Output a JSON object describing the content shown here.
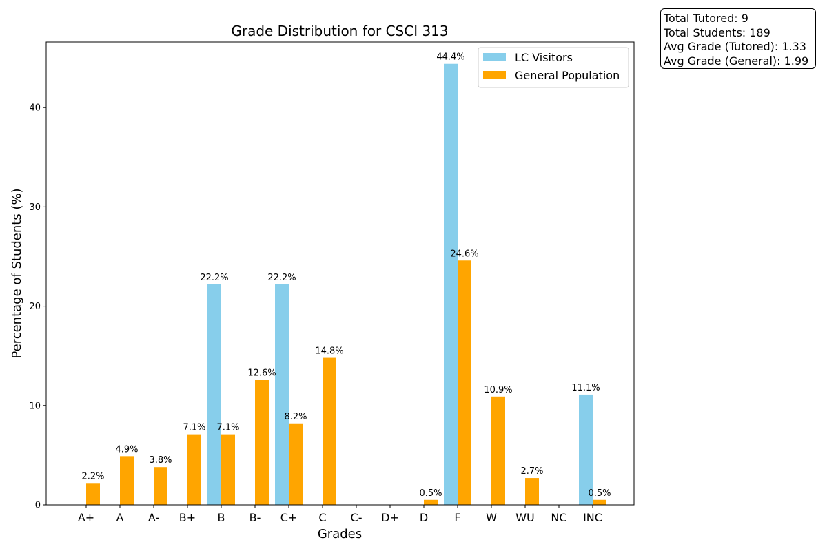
{
  "chart_data": {
    "type": "bar",
    "title": "Grade Distribution for CSCI 313",
    "xlabel": "Grades",
    "ylabel": "Percentage of Students (%)",
    "categories": [
      "A+",
      "A",
      "A-",
      "B+",
      "B",
      "B-",
      "C+",
      "C",
      "C-",
      "D+",
      "D",
      "F",
      "W",
      "WU",
      "NC",
      "INC"
    ],
    "ylim": [
      0,
      46.6
    ],
    "yticks": [
      0,
      10,
      20,
      30,
      40
    ],
    "grid": false,
    "legend_position": "top-right",
    "series": [
      {
        "name": "LC Visitors",
        "color": "#87ceeb",
        "values": [
          0,
          0,
          0,
          0,
          22.2,
          0,
          22.2,
          0,
          0,
          0,
          0,
          44.4,
          0,
          0,
          0,
          11.1
        ],
        "labels": [
          "",
          "",
          "",
          "",
          "22.2%",
          "",
          "22.2%",
          "",
          "",
          "",
          "",
          "44.4%",
          "",
          "",
          "",
          "11.1%"
        ]
      },
      {
        "name": "General Population",
        "color": "#ffa500",
        "values": [
          2.2,
          4.9,
          3.8,
          7.1,
          7.1,
          12.6,
          8.2,
          14.8,
          0,
          0,
          0.5,
          24.6,
          10.9,
          2.7,
          0,
          0.5
        ],
        "labels": [
          "2.2%",
          "4.9%",
          "3.8%",
          "7.1%",
          "7.1%",
          "12.6%",
          "8.2%",
          "14.8%",
          "",
          "",
          "0.5%",
          "24.6%",
          "10.9%",
          "2.7%",
          "",
          "0.5%"
        ]
      }
    ]
  },
  "stats": {
    "total_tutored": "Total Tutored: 9",
    "total_students": "Total Students: 189",
    "avg_tutored": "Avg Grade (Tutored): 1.33",
    "avg_general": "Avg Grade (General): 1.99"
  }
}
